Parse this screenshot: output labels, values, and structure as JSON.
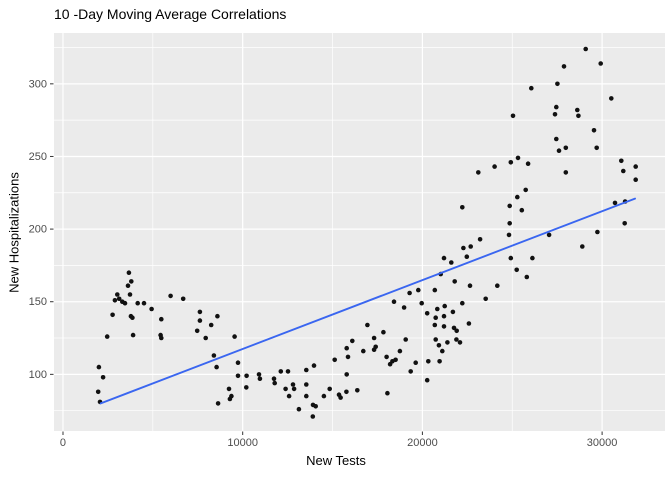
{
  "chart_data": {
    "type": "scatter",
    "title": "10 -Day Moving Average Correlations",
    "xlabel": "New Tests",
    "ylabel": "New Hospitalizations",
    "xlim": [
      -500,
      33500
    ],
    "ylim": [
      61,
      335
    ],
    "x_ticks": [
      0,
      10000,
      20000,
      30000
    ],
    "x_minor_ticks": [
      5000,
      15000,
      25000
    ],
    "y_ticks": [
      100,
      150,
      200,
      250,
      300
    ],
    "y_minor_ticks": [
      75,
      125,
      175,
      225,
      275,
      325
    ],
    "grid": "on",
    "legend": "none",
    "theme": "ggplot-gray",
    "colors": {
      "panel_bg": "#EBEBEB",
      "grid_major": "#FFFFFF",
      "grid_minor": "#FFFFFF",
      "point": "#111111",
      "trend": "#3A66F0",
      "tick_label": "#4D4D4D",
      "tick_mark": "#333333",
      "text": "#000000"
    },
    "trend_line": {
      "method": "linear",
      "points": [
        [
          2100,
          80
        ],
        [
          31830,
          221
        ]
      ]
    },
    "points": [
      [
        2000,
        105
      ],
      [
        2230,
        98
      ],
      [
        1960,
        88
      ],
      [
        2060,
        81
      ],
      [
        2460,
        126
      ],
      [
        2760,
        141
      ],
      [
        2890,
        151
      ],
      [
        3020,
        155
      ],
      [
        3130,
        152
      ],
      [
        3300,
        150
      ],
      [
        3450,
        149
      ],
      [
        3670,
        170
      ],
      [
        3800,
        164
      ],
      [
        3620,
        161
      ],
      [
        3730,
        155
      ],
      [
        4160,
        149
      ],
      [
        4510,
        149
      ],
      [
        4930,
        145
      ],
      [
        3780,
        140
      ],
      [
        3860,
        139
      ],
      [
        3900,
        127
      ],
      [
        5430,
        127
      ],
      [
        5470,
        125
      ],
      [
        5470,
        138
      ],
      [
        5990,
        154
      ],
      [
        6690,
        152
      ],
      [
        7620,
        143
      ],
      [
        7620,
        137
      ],
      [
        8250,
        134
      ],
      [
        7470,
        130
      ],
      [
        7940,
        125
      ],
      [
        8400,
        113
      ],
      [
        8590,
        140
      ],
      [
        9550,
        126
      ],
      [
        9740,
        108
      ],
      [
        8550,
        105
      ],
      [
        9740,
        99
      ],
      [
        10220,
        99
      ],
      [
        10200,
        91
      ],
      [
        9240,
        90
      ],
      [
        9370,
        85
      ],
      [
        9290,
        83
      ],
      [
        8630,
        80
      ],
      [
        10910,
        100
      ],
      [
        10960,
        97
      ],
      [
        11740,
        97
      ],
      [
        11780,
        94
      ],
      [
        12120,
        102
      ],
      [
        12520,
        102
      ],
      [
        12390,
        90
      ],
      [
        12800,
        93
      ],
      [
        12860,
        90
      ],
      [
        12580,
        85
      ],
      [
        13540,
        103
      ],
      [
        13970,
        106
      ],
      [
        13540,
        93
      ],
      [
        13540,
        85
      ],
      [
        13130,
        76
      ],
      [
        13910,
        79
      ],
      [
        14060,
        78
      ],
      [
        13900,
        71
      ],
      [
        14520,
        85
      ],
      [
        14840,
        90
      ],
      [
        15120,
        110
      ],
      [
        15360,
        86
      ],
      [
        15450,
        84
      ],
      [
        15770,
        88
      ],
      [
        16100,
        123
      ],
      [
        15790,
        118
      ],
      [
        15860,
        112
      ],
      [
        15790,
        100
      ],
      [
        16380,
        89
      ],
      [
        16710,
        116
      ],
      [
        16940,
        134
      ],
      [
        17400,
        119
      ],
      [
        17310,
        125
      ],
      [
        17310,
        117
      ],
      [
        17830,
        129
      ],
      [
        18420,
        150
      ],
      [
        18980,
        146
      ],
      [
        18750,
        116
      ],
      [
        18010,
        112
      ],
      [
        18330,
        109
      ],
      [
        18510,
        110
      ],
      [
        18200,
        107
      ],
      [
        18050,
        87
      ],
      [
        19290,
        156
      ],
      [
        19770,
        158
      ],
      [
        19070,
        124
      ],
      [
        19630,
        108
      ],
      [
        19350,
        102
      ],
      [
        19960,
        149
      ],
      [
        20690,
        158
      ],
      [
        20270,
        142
      ],
      [
        20830,
        145
      ],
      [
        20740,
        139
      ],
      [
        20690,
        134
      ],
      [
        20740,
        124
      ],
      [
        20920,
        120
      ],
      [
        20330,
        109
      ],
      [
        20960,
        109
      ],
      [
        20270,
        96
      ],
      [
        21020,
        169
      ],
      [
        21200,
        180
      ],
      [
        21610,
        177
      ],
      [
        21800,
        164
      ],
      [
        21240,
        147
      ],
      [
        21700,
        143
      ],
      [
        21200,
        140
      ],
      [
        21200,
        133
      ],
      [
        21390,
        122
      ],
      [
        21110,
        116
      ],
      [
        21760,
        132
      ],
      [
        21910,
        130
      ],
      [
        22090,
        122
      ],
      [
        21890,
        124
      ],
      [
        22280,
        187
      ],
      [
        22690,
        188
      ],
      [
        22470,
        181
      ],
      [
        22650,
        161
      ],
      [
        22220,
        149
      ],
      [
        22590,
        135
      ],
      [
        22220,
        215
      ],
      [
        23210,
        193
      ],
      [
        23520,
        152
      ],
      [
        23110,
        239
      ],
      [
        24020,
        243
      ],
      [
        24170,
        161
      ],
      [
        24820,
        196
      ],
      [
        24920,
        180
      ],
      [
        24860,
        216
      ],
      [
        24860,
        204
      ],
      [
        24920,
        246
      ],
      [
        25040,
        278
      ],
      [
        25320,
        249
      ],
      [
        25880,
        245
      ],
      [
        25750,
        227
      ],
      [
        25280,
        222
      ],
      [
        25530,
        213
      ],
      [
        25250,
        172
      ],
      [
        25810,
        167
      ],
      [
        26120,
        180
      ],
      [
        26060,
        297
      ],
      [
        27050,
        196
      ],
      [
        27380,
        279
      ],
      [
        27450,
        284
      ],
      [
        27450,
        262
      ],
      [
        27510,
        300
      ],
      [
        27600,
        254
      ],
      [
        27880,
        312
      ],
      [
        27980,
        256
      ],
      [
        27980,
        239
      ],
      [
        28620,
        282
      ],
      [
        28680,
        278
      ],
      [
        28900,
        188
      ],
      [
        29090,
        324
      ],
      [
        29550,
        268
      ],
      [
        29700,
        256
      ],
      [
        29740,
        198
      ],
      [
        29920,
        314
      ],
      [
        30510,
        290
      ],
      [
        30720,
        218
      ],
      [
        31070,
        247
      ],
      [
        31180,
        240
      ],
      [
        31280,
        219
      ],
      [
        31260,
        204
      ],
      [
        31870,
        243
      ],
      [
        31870,
        234
      ]
    ]
  }
}
